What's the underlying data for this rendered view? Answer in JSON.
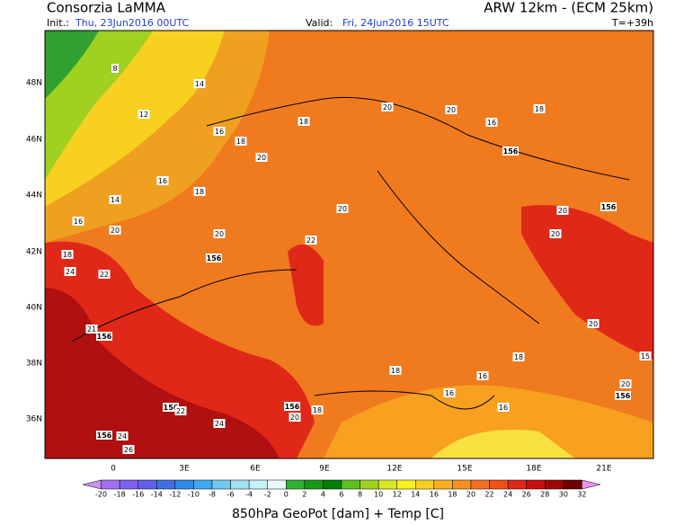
{
  "header": {
    "title": "Consorzia LaMMA",
    "model": "ARW 12km - (ECM 25km)",
    "init_label": "Init.:",
    "init": "Thu, 23Jun2016 00UTC",
    "valid_label": "Valid:",
    "valid": "Fri, 24Jun2016 15UTC",
    "lead": "T=+39h"
  },
  "axes": {
    "lat_labels": [
      "48N",
      "46N",
      "44N",
      "42N",
      "40N",
      "38N",
      "36N"
    ],
    "lon_labels": [
      "0",
      "3E",
      "6E",
      "9E",
      "12E",
      "15E",
      "18E",
      "21E"
    ]
  },
  "contour_labels": [
    8,
    14,
    12,
    16,
    18,
    20,
    16,
    18,
    14,
    16,
    20,
    20,
    18,
    24,
    22,
    156,
    22,
    20,
    18,
    20,
    20,
    16,
    18,
    156,
    20,
    156,
    20,
    156,
    21,
    20,
    18,
    18,
    16,
    16,
    16,
    156,
    20,
    18,
    156,
    22,
    24,
    156,
    24,
    26,
    15,
    20,
    156
  ],
  "colorbar": {
    "ticks": [
      -20,
      -18,
      -16,
      -14,
      -12,
      -10,
      -8,
      -6,
      -4,
      -2,
      0,
      2,
      4,
      6,
      8,
      10,
      12,
      14,
      16,
      18,
      20,
      22,
      24,
      26,
      28,
      30,
      32
    ],
    "colors": [
      "#c890f0",
      "#a070f0",
      "#8060f0",
      "#6060e8",
      "#4070e0",
      "#3088e8",
      "#40a8f0",
      "#70c8f0",
      "#a0e0f0",
      "#c8f0f8",
      "#e8f8f8",
      "#30b030",
      "#189818",
      "#008000",
      "#60c020",
      "#a0d020",
      "#d8e820",
      "#f8f020",
      "#f8d020",
      "#f8b020",
      "#f89020",
      "#f07020",
      "#f05018",
      "#e02818",
      "#c81010",
      "#a00808",
      "#700000",
      "#f090f0"
    ]
  },
  "footer": "850hPa GeoPot [dam] + Temp [C]"
}
